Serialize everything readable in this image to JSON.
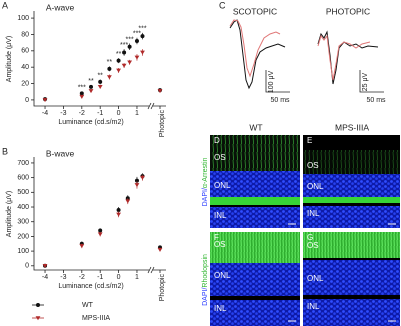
{
  "chart_data": [
    {
      "type": "scatter",
      "panel_label": "A",
      "title": "A-wave",
      "x_label": "Luminance (cd.s/m2)",
      "y_label": "Amplitude (μV)",
      "x": [
        -4,
        -2,
        -1.5,
        -1,
        -0.5,
        0,
        0.3,
        0.6,
        1,
        1.3
      ],
      "extra_category": "Photopic",
      "series": [
        {
          "color": "#111111",
          "marker": "circle",
          "values": [
            1,
            8,
            16,
            22,
            38,
            48,
            58,
            65,
            72,
            78
          ],
          "errors": [
            1,
            2,
            2,
            3,
            3,
            3,
            4,
            4,
            4,
            4
          ],
          "photopic": 12,
          "photopic_error": 2
        },
        {
          "color": "#b02a2a",
          "marker": "triangle-down",
          "values": [
            0,
            4,
            11,
            16,
            28,
            36,
            42,
            46,
            52,
            58
          ],
          "errors": [
            1,
            2,
            2,
            2,
            3,
            3,
            3,
            3,
            4,
            4
          ],
          "photopic": 11,
          "photopic_error": 2
        }
      ],
      "significance": [
        null,
        "***",
        "**",
        "**",
        "**",
        "**",
        "***",
        "***",
        "***",
        "***"
      ],
      "xlim": [
        -4.6,
        1.6
      ],
      "xticks": [
        -4,
        -3,
        -2,
        -1,
        0,
        1
      ],
      "ylim": [
        -5,
        105
      ],
      "yticks": [
        0,
        20,
        40,
        60,
        80,
        100
      ],
      "legend": false
    },
    {
      "type": "scatter",
      "panel_label": "B",
      "title": "B-wave",
      "x_label": "Luminance (cd.s/m2)",
      "y_label": "Amplitude (μV)",
      "x": [
        -4,
        -2,
        -1,
        0,
        0.5,
        1,
        1.3
      ],
      "extra_category": "Photopic",
      "series": [
        {
          "name": "WT",
          "color": "#111111",
          "marker": "circle",
          "values": [
            0,
            150,
            240,
            380,
            460,
            580,
            610
          ],
          "errors": [
            5,
            15,
            15,
            20,
            20,
            25,
            20
          ],
          "photopic": 125,
          "photopic_error": 12
        },
        {
          "name": "MPS-IIIA",
          "color": "#b02a2a",
          "marker": "triangle-down",
          "values": [
            0,
            135,
            215,
            350,
            440,
            550,
            600
          ],
          "errors": [
            5,
            15,
            15,
            20,
            20,
            25,
            20
          ],
          "photopic": 110,
          "photopic_error": 12
        }
      ],
      "xlim": [
        -4.6,
        1.6
      ],
      "xticks": [
        -4,
        -3,
        -2,
        -1,
        0,
        1
      ],
      "ylim": [
        -15,
        720
      ],
      "yticks": [
        0,
        100,
        200,
        300,
        400,
        500,
        600,
        700
      ],
      "legend": true,
      "legend_position": "bottom"
    }
  ],
  "erg": {
    "panel_label": "C",
    "conditions": [
      {
        "title": "SCOTOPIC",
        "amplitude_scale": "100 μV",
        "time_scale": "50 ms"
      },
      {
        "title": "PHOTOPIC",
        "amplitude_scale": "25 μV",
        "time_scale": "50 ms"
      }
    ]
  },
  "histology": {
    "columns": [
      "WT",
      "MPS-IIIA"
    ],
    "rows": [
      {
        "stain": "DAPI/",
        "marker": "α-Arrestin",
        "panels": [
          {
            "label": "D",
            "layers": [
              "OS",
              "ONL",
              "INL"
            ]
          },
          {
            "label": "E",
            "layers": [
              "OS",
              "ONL",
              "INL"
            ]
          }
        ]
      },
      {
        "stain": "DAPI/",
        "marker": "Rhodopsin",
        "panels": [
          {
            "label": "F",
            "layers": [
              "OS",
              "ONL",
              "INL"
            ]
          },
          {
            "label": "G",
            "layers": [
              "OS",
              "ONL",
              "INL"
            ]
          }
        ]
      }
    ]
  }
}
